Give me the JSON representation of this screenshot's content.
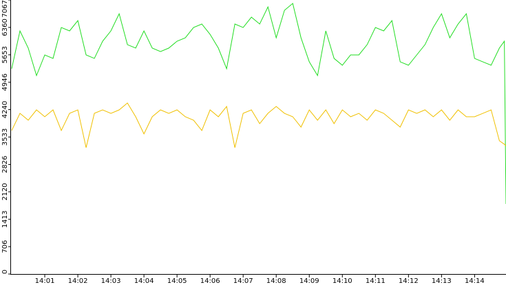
{
  "chart_data": {
    "type": "line",
    "x": [
      0,
      0.25,
      0.5,
      0.75,
      1,
      1.25,
      1.5,
      1.75,
      2,
      2.25,
      2.5,
      2.75,
      3,
      3.25,
      3.5,
      3.75,
      4,
      4.25,
      4.5,
      4.75,
      5,
      5.25,
      5.5,
      5.75,
      6,
      6.25,
      6.5,
      6.75,
      7,
      7.25,
      7.5,
      7.75,
      8,
      8.25,
      8.5,
      8.75,
      9,
      9.25,
      9.5,
      9.75,
      10,
      10.25,
      10.5,
      10.75,
      11,
      11.25,
      11.5,
      11.75,
      12,
      12.25,
      12.5,
      12.75,
      13,
      13.25,
      13.5,
      13.75,
      14,
      14.25,
      14.5,
      14.75,
      14.9,
      14.95
    ],
    "series": [
      {
        "color": "#22dd22",
        "values": [
          5295,
          6270,
          5827,
          5118,
          5650,
          5561,
          6358,
          6270,
          6535,
          5650,
          5561,
          6004,
          6270,
          6712,
          5915,
          5827,
          6270,
          5827,
          5738,
          5827,
          6004,
          6092,
          6358,
          6447,
          6181,
          5827,
          5295,
          6447,
          6358,
          6624,
          6447,
          6889,
          6092,
          6801,
          6978,
          6092,
          5472,
          5118,
          6270,
          5561,
          5384,
          5650,
          5650,
          5915,
          6358,
          6270,
          6535,
          5472,
          5384,
          5650,
          5915,
          6358,
          6712,
          6092,
          6447,
          6712,
          5561,
          5472,
          5384,
          5827,
          6004,
          1806
        ]
      },
      {
        "color": "#f0c000",
        "values": [
          3701,
          4144,
          3967,
          4233,
          4056,
          4233,
          3701,
          4144,
          4233,
          3259,
          4144,
          4233,
          4144,
          4233,
          4410,
          4056,
          3613,
          4056,
          4233,
          4144,
          4233,
          4056,
          3967,
          3701,
          4233,
          4056,
          4321,
          3259,
          4144,
          4233,
          3878,
          4144,
          4321,
          4144,
          4056,
          3790,
          4233,
          3967,
          4233,
          3878,
          4233,
          4056,
          4144,
          3967,
          4233,
          4144,
          3967,
          3790,
          4233,
          4144,
          4233,
          4056,
          4233,
          3967,
          4233,
          4056,
          4056,
          4144,
          4233,
          3436,
          3347,
          3300
        ]
      }
    ],
    "xlim": [
      0,
      14.95
    ],
    "xticks": [
      {
        "value": 1,
        "label": "14:01"
      },
      {
        "value": 2,
        "label": "14:02"
      },
      {
        "value": 3,
        "label": "14:03"
      },
      {
        "value": 4,
        "label": "14:04"
      },
      {
        "value": 5,
        "label": "14:05"
      },
      {
        "value": 6,
        "label": "14:06"
      },
      {
        "value": 7,
        "label": "14:07"
      },
      {
        "value": 8,
        "label": "14:08"
      },
      {
        "value": 9,
        "label": "14:09"
      },
      {
        "value": 10,
        "label": "14:10"
      },
      {
        "value": 11,
        "label": "14:11"
      },
      {
        "value": 12,
        "label": "14:12"
      },
      {
        "value": 13,
        "label": "14:13"
      },
      {
        "value": 14,
        "label": "14:14"
      }
    ],
    "ylim": [
      0,
      7067
    ],
    "yticks": [
      0,
      706,
      1413,
      2120,
      2826,
      3533,
      4240,
      4946,
      5653,
      6360,
      7067
    ]
  }
}
